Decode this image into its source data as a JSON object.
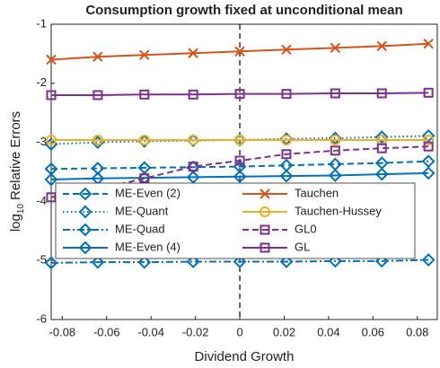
{
  "chart_data": {
    "type": "line",
    "title": "Consumption growth fixed at unconditional mean",
    "xlabel": "Dividend Growth",
    "ylabel": {
      "base": "log",
      "subscript": "10",
      "text": "Relative Errors"
    },
    "x": [
      -0.085,
      -0.064,
      -0.043,
      -0.021,
      0,
      0.021,
      0.043,
      0.064,
      0.085
    ],
    "xlim": [
      -0.085,
      0.089
    ],
    "xticks": [
      -0.08,
      -0.06,
      -0.04,
      -0.02,
      0,
      0.02,
      0.04,
      0.06,
      0.08
    ],
    "ylim": [
      -6,
      -1
    ],
    "yticks": [
      -6,
      -5,
      -4,
      -3,
      -2,
      -1
    ],
    "vline": 0,
    "legend": "bottom",
    "series": [
      {
        "name": "ME-Even (2)",
        "color": "#0072BD",
        "marker": "diamond",
        "dash": "dashed",
        "values": [
          -3.45,
          -3.44,
          -3.43,
          -3.42,
          -3.41,
          -3.39,
          -3.37,
          -3.35,
          -3.32
        ]
      },
      {
        "name": "ME-Quant",
        "color": "#0072BD",
        "marker": "diamond",
        "dash": "dotted",
        "values": [
          -3.03,
          -3.0,
          -2.98,
          -2.97,
          -2.96,
          -2.94,
          -2.93,
          -2.91,
          -2.89
        ]
      },
      {
        "name": "ME-Quad",
        "color": "#0072BD",
        "marker": "diamond",
        "dash": "dashdot",
        "values": [
          -5.04,
          -5.03,
          -5.03,
          -5.02,
          -5.02,
          -5.02,
          -5.01,
          -5.01,
          -4.99
        ]
      },
      {
        "name": "ME-Even (4)",
        "color": "#0072BD",
        "marker": "diamond",
        "dash": "solid",
        "values": [
          -3.63,
          -3.61,
          -3.6,
          -3.59,
          -3.58,
          -3.57,
          -3.56,
          -3.54,
          -3.52
        ]
      },
      {
        "name": "Tauchen",
        "color": "#D95319",
        "marker": "x",
        "dash": "solid",
        "values": [
          -1.6,
          -1.55,
          -1.52,
          -1.49,
          -1.46,
          -1.43,
          -1.4,
          -1.37,
          -1.33
        ]
      },
      {
        "name": "Tauchen-Hussey",
        "color": "#EDB120",
        "marker": "circle",
        "dash": "solid",
        "values": [
          -2.96,
          -2.96,
          -2.96,
          -2.96,
          -2.96,
          -2.96,
          -2.96,
          -2.96,
          -2.96
        ]
      },
      {
        "name": "GL0",
        "color": "#7E2F8E",
        "marker": "square",
        "dash": "dashed",
        "values": [
          -3.93,
          -3.8,
          -3.61,
          -3.41,
          -3.31,
          -3.2,
          -3.14,
          -3.1,
          -3.07
        ]
      },
      {
        "name": "GL",
        "color": "#7E2F8E",
        "marker": "square",
        "dash": "solid",
        "values": [
          -2.2,
          -2.2,
          -2.19,
          -2.19,
          -2.18,
          -2.18,
          -2.17,
          -2.17,
          -2.16
        ]
      }
    ]
  }
}
